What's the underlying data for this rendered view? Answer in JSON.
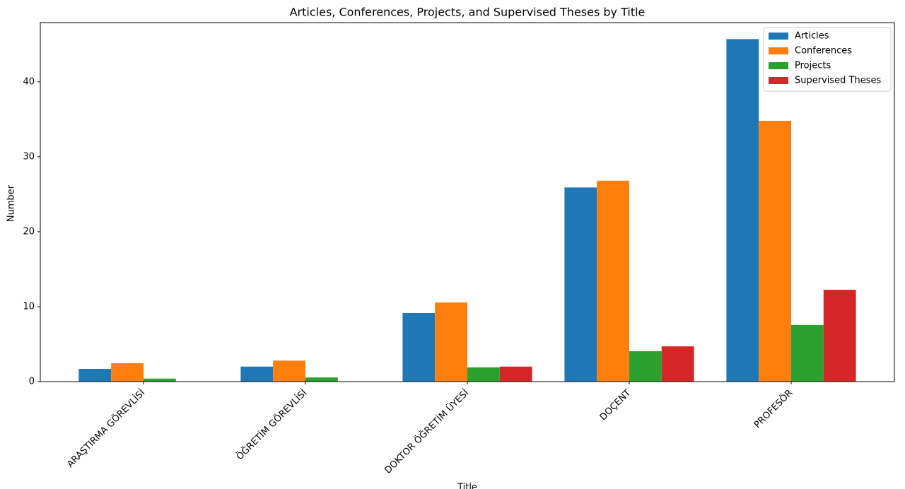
{
  "chart_data": {
    "type": "bar",
    "title": "Articles, Conferences, Projects, and Supervised Theses by Title",
    "x_label": "Title",
    "y_label": "Number",
    "categories": [
      "ARAŞTIRMA GÖREVLİSİ",
      "ÖĞRETİM GÖREVLİSİ",
      "DOKTOR ÖĞRETİM ÜYESİ",
      "DOÇENT",
      "PROFESÖR"
    ],
    "series": [
      {
        "name": "Articles",
        "color": "#1f77b4",
        "values": [
          1.7,
          2.0,
          9.15,
          25.9,
          45.7
        ]
      },
      {
        "name": "Conferences",
        "color": "#ff7f0e",
        "values": [
          2.45,
          2.8,
          10.55,
          26.8,
          34.8
        ]
      },
      {
        "name": "Projects",
        "color": "#2ca02c",
        "values": [
          0.4,
          0.55,
          1.9,
          4.05,
          7.55
        ]
      },
      {
        "name": "Supervised Theses",
        "color": "#d62728",
        "values": [
          0,
          0,
          2.0,
          4.7,
          12.25
        ]
      }
    ],
    "ylim": [
      0,
      47.9
    ],
    "yticks": [
      0,
      10,
      20,
      30,
      40
    ],
    "grid": false,
    "legend": "upper right"
  }
}
